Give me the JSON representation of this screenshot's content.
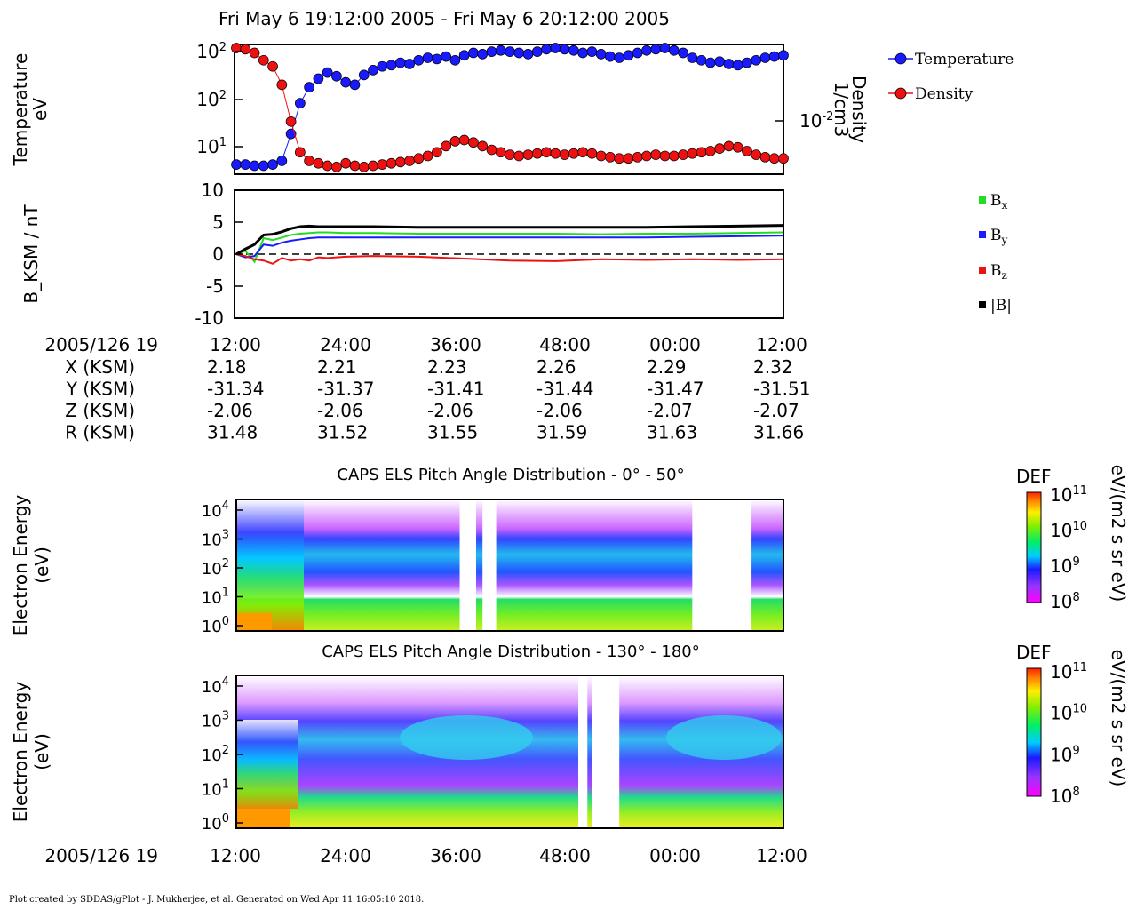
{
  "header": {
    "title": "Fri May 6 19:12:00 2005 - Fri May 6 20:12:00 2005"
  },
  "footer": {
    "text": "Plot created by SDDAS/gPlot - J. Mukherjee, et al.  Generated on Wed Apr 11 16:05:10 2018."
  },
  "colors": {
    "temperature": "#1a1aff",
    "density": "#ee1111",
    "bx": "#22dd22",
    "by": "#1a1aff",
    "bz": "#ee1111",
    "btot": "#000000"
  },
  "ephemeris": {
    "date_label": "2005/126 19",
    "times": [
      "12:00",
      "24:00",
      "36:00",
      "48:00",
      "00:00",
      "12:00"
    ],
    "rows": [
      {
        "label": "X (KSM)",
        "values": [
          "2.18",
          "2.21",
          "2.23",
          "2.26",
          "2.29",
          "2.32"
        ]
      },
      {
        "label": "Y (KSM)",
        "values": [
          "-31.34",
          "-31.37",
          "-31.41",
          "-31.44",
          "-31.47",
          "-31.51"
        ]
      },
      {
        "label": "Z (KSM)",
        "values": [
          "-2.06",
          "-2.06",
          "-2.06",
          "-2.06",
          "-2.07",
          "-2.07"
        ]
      },
      {
        "label": "R (KSM)",
        "values": [
          "31.48",
          "31.52",
          "31.55",
          "31.59",
          "31.63",
          "31.66"
        ]
      }
    ]
  },
  "bottom_axis": {
    "date_label": "2005/126 19",
    "times": [
      "12:00",
      "24:00",
      "36:00",
      "48:00",
      "00:00",
      "12:00"
    ]
  },
  "chart_data": [
    {
      "type": "line",
      "ylabel_left": [
        "Temperature",
        "eV"
      ],
      "ylabel_right": [
        "Density",
        "1/cm3"
      ],
      "left_ticks": [
        "10^2",
        "10^2",
        "10^1"
      ],
      "right_ticks": [
        "10^-2"
      ],
      "x_range_minutes": [
        0,
        60
      ],
      "series": [
        {
          "name": "Temperature",
          "role": "temperature",
          "x": [
            0,
            1,
            2,
            3,
            4,
            5,
            6,
            7,
            8,
            9,
            10,
            11,
            12,
            13,
            14,
            15,
            16,
            17,
            18,
            19,
            20,
            21,
            22,
            23,
            24,
            25,
            26,
            27,
            28,
            29,
            30,
            31,
            32,
            33,
            34,
            35,
            36,
            37,
            38,
            39,
            40,
            41,
            42,
            43,
            44,
            45,
            46,
            47,
            48,
            49,
            50,
            51,
            52,
            53,
            54,
            55,
            56,
            57,
            58,
            59,
            60
          ],
          "y": [
            0.05,
            0.05,
            0.04,
            0.04,
            0.05,
            0.08,
            0.3,
            0.55,
            0.68,
            0.75,
            0.8,
            0.77,
            0.72,
            0.7,
            0.78,
            0.82,
            0.85,
            0.86,
            0.88,
            0.87,
            0.9,
            0.92,
            0.91,
            0.93,
            0.9,
            0.94,
            0.96,
            0.95,
            0.97,
            0.98,
            0.97,
            0.96,
            0.95,
            0.97,
            0.99,
            1.0,
            0.99,
            0.98,
            0.96,
            0.97,
            0.95,
            0.93,
            0.92,
            0.94,
            0.96,
            0.98,
            0.99,
            1.0,
            0.98,
            0.96,
            0.92,
            0.9,
            0.88,
            0.89,
            0.87,
            0.86,
            0.88,
            0.9,
            0.92,
            0.93,
            0.94
          ]
        },
        {
          "name": "Density",
          "role": "density",
          "x": [
            0,
            1,
            2,
            3,
            4,
            5,
            6,
            7,
            8,
            9,
            10,
            11,
            12,
            13,
            14,
            15,
            16,
            17,
            18,
            19,
            20,
            21,
            22,
            23,
            24,
            25,
            26,
            27,
            28,
            29,
            30,
            31,
            32,
            33,
            34,
            35,
            36,
            37,
            38,
            39,
            40,
            41,
            42,
            43,
            44,
            45,
            46,
            47,
            48,
            49,
            50,
            51,
            52,
            53,
            54,
            55,
            56,
            57,
            58,
            59,
            60
          ],
          "y": [
            1.0,
            0.99,
            0.96,
            0.9,
            0.85,
            0.7,
            0.4,
            0.15,
            0.08,
            0.06,
            0.04,
            0.03,
            0.06,
            0.04,
            0.03,
            0.04,
            0.05,
            0.06,
            0.07,
            0.08,
            0.1,
            0.12,
            0.15,
            0.2,
            0.24,
            0.25,
            0.23,
            0.2,
            0.17,
            0.15,
            0.13,
            0.12,
            0.13,
            0.14,
            0.15,
            0.14,
            0.13,
            0.14,
            0.15,
            0.14,
            0.12,
            0.11,
            0.1,
            0.1,
            0.11,
            0.12,
            0.13,
            0.12,
            0.12,
            0.13,
            0.14,
            0.15,
            0.16,
            0.18,
            0.2,
            0.19,
            0.16,
            0.13,
            0.11,
            0.1,
            0.1
          ]
        }
      ]
    },
    {
      "type": "line",
      "ylabel": "B_KSM / nT",
      "ylim": [
        -10,
        10
      ],
      "yticks": [
        10,
        5,
        0,
        -5,
        -10
      ],
      "series": [
        {
          "name": "Bx",
          "role": "bx",
          "x": [
            0,
            1,
            2,
            3,
            4,
            5,
            6,
            7,
            8,
            9,
            10,
            12,
            15,
            20,
            25,
            30,
            35,
            40,
            45,
            50,
            55,
            60
          ],
          "y": [
            0,
            0.5,
            -1.2,
            2.5,
            2.2,
            2.6,
            3.0,
            3.2,
            3.3,
            3.4,
            3.4,
            3.3,
            3.3,
            3.2,
            3.2,
            3.2,
            3.2,
            3.1,
            3.2,
            3.2,
            3.3,
            3.4
          ]
        },
        {
          "name": "By",
          "role": "by",
          "x": [
            0,
            1,
            2,
            3,
            4,
            5,
            6,
            7,
            8,
            9,
            10,
            12,
            15,
            20,
            25,
            30,
            35,
            40,
            45,
            50,
            55,
            60
          ],
          "y": [
            0,
            -0.5,
            -0.3,
            1.5,
            1.3,
            1.8,
            2.1,
            2.3,
            2.5,
            2.6,
            2.6,
            2.6,
            2.6,
            2.6,
            2.6,
            2.6,
            2.6,
            2.6,
            2.6,
            2.7,
            2.8,
            2.9
          ]
        },
        {
          "name": "Bz",
          "role": "bz",
          "x": [
            0,
            1,
            2,
            3,
            4,
            5,
            6,
            7,
            8,
            9,
            10,
            12,
            15,
            20,
            25,
            30,
            35,
            40,
            45,
            50,
            55,
            60
          ],
          "y": [
            0,
            -0.3,
            -0.8,
            -1.0,
            -1.5,
            -0.6,
            -1.0,
            -0.8,
            -1.0,
            -0.5,
            -0.6,
            -0.4,
            -0.3,
            -0.4,
            -0.7,
            -1.0,
            -1.1,
            -0.8,
            -0.9,
            -0.8,
            -0.9,
            -0.8
          ]
        },
        {
          "name": "|B|",
          "role": "btot",
          "x": [
            0,
            1,
            2,
            3,
            4,
            5,
            6,
            7,
            8,
            9,
            10,
            12,
            15,
            20,
            25,
            30,
            35,
            40,
            45,
            50,
            55,
            60
          ],
          "y": [
            0,
            0.8,
            1.5,
            3.0,
            3.1,
            3.5,
            4.0,
            4.3,
            4.4,
            4.3,
            4.3,
            4.3,
            4.3,
            4.2,
            4.2,
            4.2,
            4.2,
            4.2,
            4.2,
            4.3,
            4.4,
            4.5
          ]
        }
      ],
      "legend_labels": [
        "B",
        "B",
        "B",
        "|B|"
      ],
      "legend_subscripts": [
        "x",
        "y",
        "z",
        ""
      ]
    },
    {
      "type": "heatmap",
      "title": "CAPS ELS Pitch Angle Distribution - 0° - 50°",
      "ylabel": [
        "Electron Energy",
        "(eV)"
      ],
      "yticks": [
        "10^4",
        "10^3",
        "10^2",
        "10^1",
        "10^0"
      ],
      "colorbar": {
        "label": "DEF",
        "units": "eV/(m2 s sr eV)",
        "ticks": [
          "10^11",
          "10^10",
          "10^9",
          "10^8"
        ]
      },
      "data_gaps_minutes": [
        [
          24.5,
          26.3
        ],
        [
          27.0,
          28.5
        ],
        [
          50.0,
          56.5
        ]
      ]
    },
    {
      "type": "heatmap",
      "title": "CAPS ELS Pitch Angle Distribution - 130° - 180°",
      "ylabel": [
        "Electron Energy",
        "(eV)"
      ],
      "yticks": [
        "10^4",
        "10^3",
        "10^2",
        "10^1",
        "10^0"
      ],
      "colorbar": {
        "label": "DEF",
        "units": "eV/(m2 s sr eV)",
        "ticks": [
          "10^11",
          "10^10",
          "10^9",
          "10^8"
        ]
      },
      "data_gaps_minutes": [
        [
          37.5,
          38.5
        ],
        [
          39.0,
          42.0
        ]
      ]
    }
  ]
}
